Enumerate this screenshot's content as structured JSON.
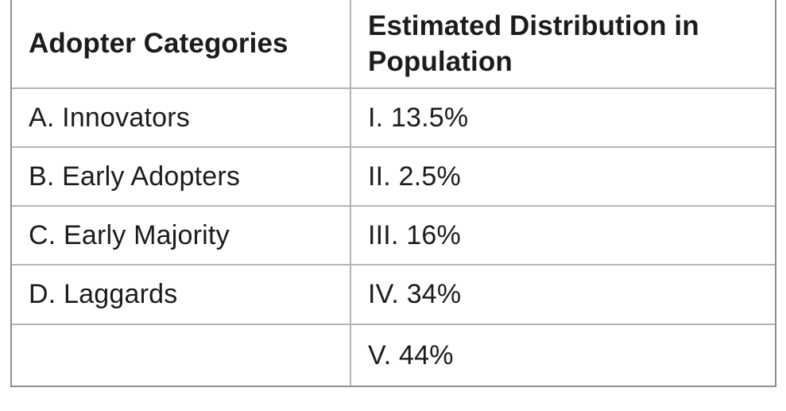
{
  "table": {
    "columns": [
      {
        "header": "Adopter Categories"
      },
      {
        "header": "Estimated Distribution in Population"
      }
    ],
    "rows": [
      {
        "category": "A. Innovators",
        "distribution": "I. 13.5%"
      },
      {
        "category": "B. Early Adopters",
        "distribution": "II. 2.5%"
      },
      {
        "category": "C. Early Majority",
        "distribution": "III. 16%"
      },
      {
        "category": "D. Laggards",
        "distribution": "IV. 34%"
      },
      {
        "category": "",
        "distribution": "V. 44%"
      }
    ]
  },
  "colors": {
    "outer_border": "#8f8f8f",
    "inner_border": "#b5b5b5",
    "text": "#1c1c1e",
    "background": "#ffffff"
  }
}
